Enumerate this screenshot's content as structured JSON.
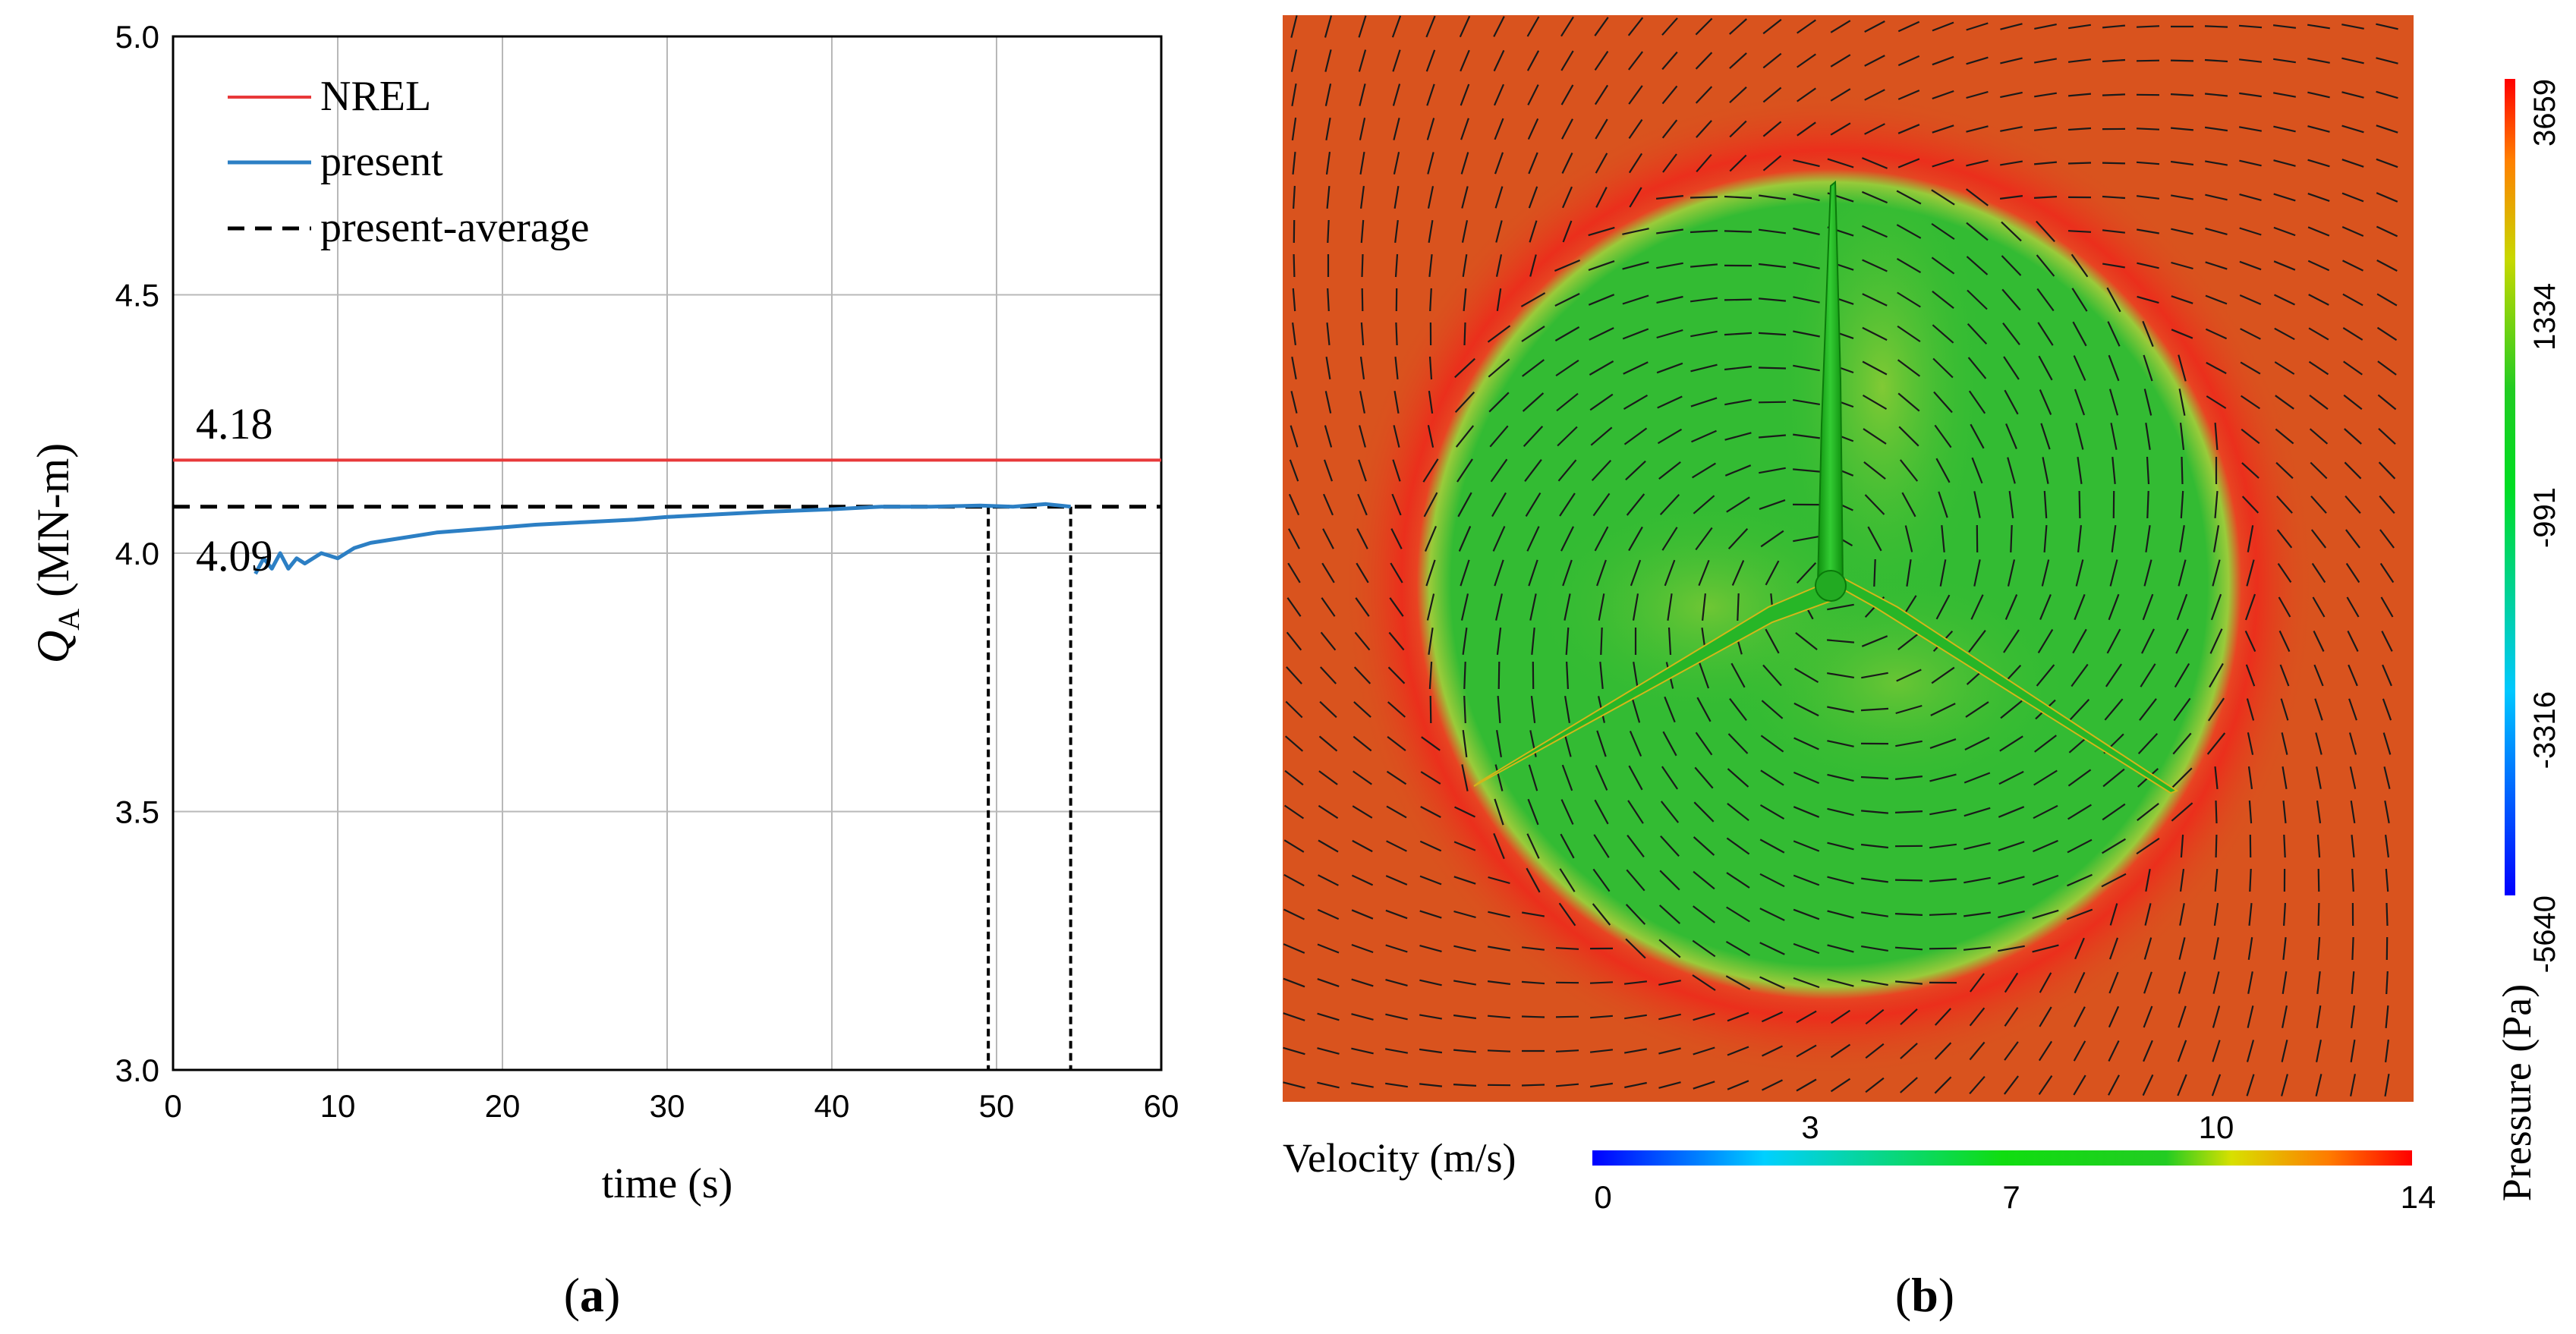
{
  "chart_data": [
    {
      "type": "line",
      "panel_label": "a",
      "xlabel": "time (s)",
      "ylabel_symbol": "Q",
      "ylabel_subscript": "A",
      "ylabel_unit": " (MN-m)",
      "xlim": [
        0,
        60
      ],
      "ylim": [
        3.0,
        5.0
      ],
      "x_ticks": [
        0,
        10,
        20,
        30,
        40,
        50,
        60
      ],
      "y_ticks": [
        3.0,
        3.5,
        4.0,
        4.5,
        5.0
      ],
      "grid": true,
      "legend": {
        "position": "top-left",
        "entries": [
          {
            "label": "NREL",
            "color": "#e8393a",
            "style": "solid"
          },
          {
            "label": "present",
            "color": "#2c7fc4",
            "style": "solid"
          },
          {
            "label": "present-average",
            "color": "#000000",
            "style": "dashed"
          }
        ]
      },
      "series": [
        {
          "name": "NREL",
          "type": "hline",
          "y": 4.18,
          "color": "#e8393a"
        },
        {
          "name": "present-average",
          "type": "hline",
          "y": 4.09,
          "color": "#000000"
        },
        {
          "name": "present",
          "color": "#2c7fc4",
          "x": [
            5.0,
            5.5,
            6.0,
            6.5,
            7.0,
            7.5,
            8.0,
            9.0,
            10.0,
            11.0,
            12.0,
            14.0,
            16.0,
            18.0,
            20.0,
            22.0,
            25.0,
            28.0,
            30.0,
            33.0,
            36.0,
            40.0,
            43.0,
            46.0,
            49.0,
            51.0,
            53.0,
            54.5
          ],
          "y": [
            3.96,
            3.99,
            3.97,
            4.0,
            3.97,
            3.99,
            3.98,
            4.0,
            3.99,
            4.01,
            4.02,
            4.03,
            4.04,
            4.045,
            4.05,
            4.055,
            4.06,
            4.065,
            4.07,
            4.075,
            4.08,
            4.085,
            4.09,
            4.09,
            4.092,
            4.09,
            4.095,
            4.09
          ]
        }
      ],
      "vlines": [
        49.5,
        54.5
      ],
      "annotations": [
        "4.18",
        "4.09"
      ]
    },
    {
      "type": "heatmap",
      "panel_label": "b",
      "description_fields": "Pressure contour with velocity vectors on rotor plane",
      "colorbar_pressure": {
        "label": "Pressure (Pa)",
        "ticks": [
          "3659",
          "1334",
          "-991",
          "-3316",
          "-5640"
        ],
        "range": [
          -5640,
          3659
        ]
      },
      "colorbar_velocity": {
        "label": "Velocity (m/s)",
        "ticks_top": [
          "3",
          "10"
        ],
        "ticks_bottom": [
          "0",
          "7",
          "14"
        ],
        "range": [
          0,
          14
        ]
      }
    }
  ],
  "colors": {
    "field_outer": "#d9531e",
    "field_ring": "#e8321e",
    "field_inner": "#33bb33",
    "blade": "#1fb81f"
  }
}
